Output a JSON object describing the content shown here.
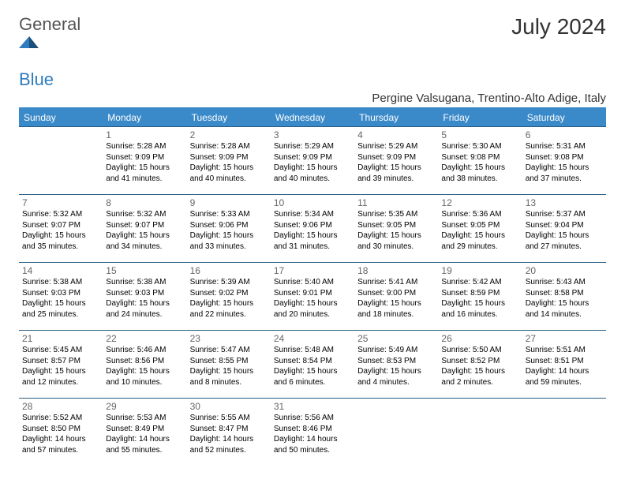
{
  "brand": {
    "name_a": "General",
    "name_b": "Blue"
  },
  "title": "July 2024",
  "location": "Pergine Valsugana, Trentino-Alto Adige, Italy",
  "colors": {
    "header_bg": "#3a89c9",
    "header_text": "#ffffff",
    "row_border": "#2a5d84",
    "location_underline": "#3a89c9",
    "title_text": "#333333",
    "logo_grey": "#555555",
    "logo_blue": "#2f7bbf",
    "daynum_text": "#666666",
    "body_text": "#000000",
    "page_bg": "#ffffff"
  },
  "fonts": {
    "title_pt": 28,
    "location_pt": 15,
    "weekday_pt": 12,
    "daynum_pt": 12,
    "cell_pt": 10,
    "logo_pt": 22
  },
  "weekdays": [
    "Sunday",
    "Monday",
    "Tuesday",
    "Wednesday",
    "Thursday",
    "Friday",
    "Saturday"
  ],
  "weeks": [
    [
      null,
      {
        "n": "1",
        "sr": "5:28 AM",
        "ss": "9:09 PM",
        "dl": "15 hours and 41 minutes."
      },
      {
        "n": "2",
        "sr": "5:28 AM",
        "ss": "9:09 PM",
        "dl": "15 hours and 40 minutes."
      },
      {
        "n": "3",
        "sr": "5:29 AM",
        "ss": "9:09 PM",
        "dl": "15 hours and 40 minutes."
      },
      {
        "n": "4",
        "sr": "5:29 AM",
        "ss": "9:09 PM",
        "dl": "15 hours and 39 minutes."
      },
      {
        "n": "5",
        "sr": "5:30 AM",
        "ss": "9:08 PM",
        "dl": "15 hours and 38 minutes."
      },
      {
        "n": "6",
        "sr": "5:31 AM",
        "ss": "9:08 PM",
        "dl": "15 hours and 37 minutes."
      }
    ],
    [
      {
        "n": "7",
        "sr": "5:32 AM",
        "ss": "9:07 PM",
        "dl": "15 hours and 35 minutes."
      },
      {
        "n": "8",
        "sr": "5:32 AM",
        "ss": "9:07 PM",
        "dl": "15 hours and 34 minutes."
      },
      {
        "n": "9",
        "sr": "5:33 AM",
        "ss": "9:06 PM",
        "dl": "15 hours and 33 minutes."
      },
      {
        "n": "10",
        "sr": "5:34 AM",
        "ss": "9:06 PM",
        "dl": "15 hours and 31 minutes."
      },
      {
        "n": "11",
        "sr": "5:35 AM",
        "ss": "9:05 PM",
        "dl": "15 hours and 30 minutes."
      },
      {
        "n": "12",
        "sr": "5:36 AM",
        "ss": "9:05 PM",
        "dl": "15 hours and 29 minutes."
      },
      {
        "n": "13",
        "sr": "5:37 AM",
        "ss": "9:04 PM",
        "dl": "15 hours and 27 minutes."
      }
    ],
    [
      {
        "n": "14",
        "sr": "5:38 AM",
        "ss": "9:03 PM",
        "dl": "15 hours and 25 minutes."
      },
      {
        "n": "15",
        "sr": "5:38 AM",
        "ss": "9:03 PM",
        "dl": "15 hours and 24 minutes."
      },
      {
        "n": "16",
        "sr": "5:39 AM",
        "ss": "9:02 PM",
        "dl": "15 hours and 22 minutes."
      },
      {
        "n": "17",
        "sr": "5:40 AM",
        "ss": "9:01 PM",
        "dl": "15 hours and 20 minutes."
      },
      {
        "n": "18",
        "sr": "5:41 AM",
        "ss": "9:00 PM",
        "dl": "15 hours and 18 minutes."
      },
      {
        "n": "19",
        "sr": "5:42 AM",
        "ss": "8:59 PM",
        "dl": "15 hours and 16 minutes."
      },
      {
        "n": "20",
        "sr": "5:43 AM",
        "ss": "8:58 PM",
        "dl": "15 hours and 14 minutes."
      }
    ],
    [
      {
        "n": "21",
        "sr": "5:45 AM",
        "ss": "8:57 PM",
        "dl": "15 hours and 12 minutes."
      },
      {
        "n": "22",
        "sr": "5:46 AM",
        "ss": "8:56 PM",
        "dl": "15 hours and 10 minutes."
      },
      {
        "n": "23",
        "sr": "5:47 AM",
        "ss": "8:55 PM",
        "dl": "15 hours and 8 minutes."
      },
      {
        "n": "24",
        "sr": "5:48 AM",
        "ss": "8:54 PM",
        "dl": "15 hours and 6 minutes."
      },
      {
        "n": "25",
        "sr": "5:49 AM",
        "ss": "8:53 PM",
        "dl": "15 hours and 4 minutes."
      },
      {
        "n": "26",
        "sr": "5:50 AM",
        "ss": "8:52 PM",
        "dl": "15 hours and 2 minutes."
      },
      {
        "n": "27",
        "sr": "5:51 AM",
        "ss": "8:51 PM",
        "dl": "14 hours and 59 minutes."
      }
    ],
    [
      {
        "n": "28",
        "sr": "5:52 AM",
        "ss": "8:50 PM",
        "dl": "14 hours and 57 minutes."
      },
      {
        "n": "29",
        "sr": "5:53 AM",
        "ss": "8:49 PM",
        "dl": "14 hours and 55 minutes."
      },
      {
        "n": "30",
        "sr": "5:55 AM",
        "ss": "8:47 PM",
        "dl": "14 hours and 52 minutes."
      },
      {
        "n": "31",
        "sr": "5:56 AM",
        "ss": "8:46 PM",
        "dl": "14 hours and 50 minutes."
      },
      null,
      null,
      null
    ]
  ]
}
